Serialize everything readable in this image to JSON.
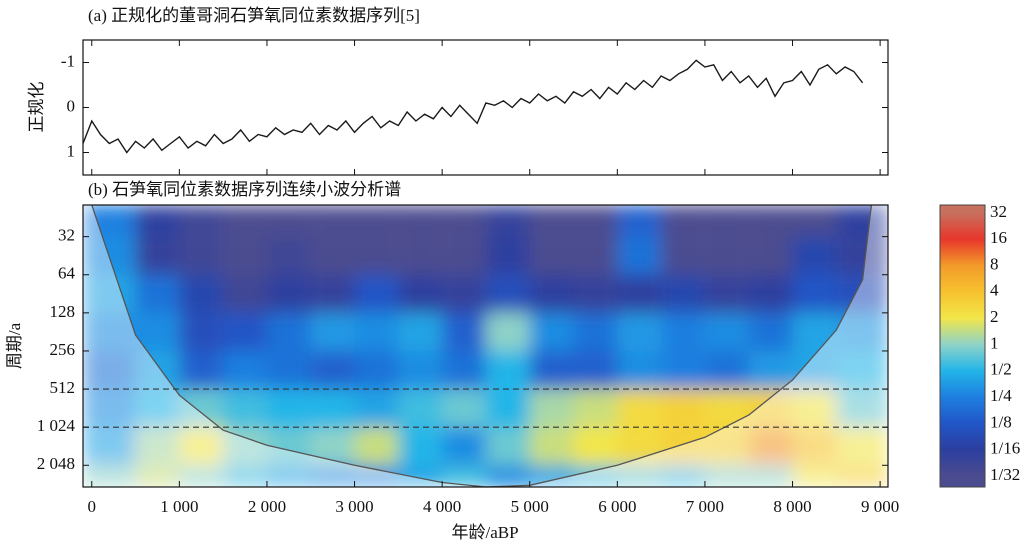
{
  "chart_data": [
    {
      "type": "line",
      "title": "(a) 正规化的董哥洞石笋氧同位素数据序列[5]",
      "y_label": "正规化",
      "xlim": [
        -100,
        9090
      ],
      "xticks": [
        0,
        1000,
        2000,
        3000,
        4000,
        5000,
        6000,
        7000,
        8000,
        9000
      ],
      "ylim": [
        -1.5,
        1.5
      ],
      "y_inverted": true,
      "yticks": [
        -1,
        0,
        1
      ],
      "series": [
        {
          "color": "#1a1a1a",
          "x": [
            -100,
            0,
            100,
            200,
            300,
            400,
            500,
            600,
            700,
            800,
            900,
            1000,
            1100,
            1200,
            1300,
            1400,
            1500,
            1600,
            1700,
            1800,
            1900,
            2000,
            2100,
            2200,
            2300,
            2400,
            2500,
            2600,
            2700,
            2800,
            2900,
            3000,
            3100,
            3200,
            3300,
            3400,
            3500,
            3600,
            3700,
            3800,
            3900,
            4000,
            4100,
            4200,
            4300,
            4400,
            4500,
            4600,
            4700,
            4800,
            4900,
            5000,
            5100,
            5200,
            5300,
            5400,
            5500,
            5600,
            5700,
            5800,
            5900,
            6000,
            6100,
            6200,
            6300,
            6400,
            6500,
            6600,
            6700,
            6800,
            6900,
            7000,
            7100,
            7200,
            7300,
            7400,
            7500,
            7600,
            7700,
            7800,
            7900,
            8000,
            8100,
            8200,
            8300,
            8400,
            8500,
            8600,
            8700,
            8800
          ],
          "values": [
            0.8,
            0.3,
            0.6,
            0.8,
            0.7,
            1.0,
            0.75,
            0.9,
            0.7,
            0.95,
            0.8,
            0.65,
            0.9,
            0.75,
            0.85,
            0.6,
            0.8,
            0.7,
            0.5,
            0.75,
            0.6,
            0.65,
            0.45,
            0.6,
            0.5,
            0.55,
            0.35,
            0.6,
            0.4,
            0.5,
            0.3,
            0.55,
            0.35,
            0.2,
            0.45,
            0.3,
            0.4,
            0.1,
            0.3,
            0.15,
            0.25,
            0.0,
            0.2,
            -0.05,
            0.15,
            0.35,
            -0.1,
            -0.05,
            -0.15,
            0.0,
            -0.2,
            -0.1,
            -0.3,
            -0.15,
            -0.25,
            -0.1,
            -0.35,
            -0.25,
            -0.4,
            -0.2,
            -0.45,
            -0.3,
            -0.55,
            -0.4,
            -0.6,
            -0.45,
            -0.7,
            -0.6,
            -0.75,
            -0.85,
            -1.05,
            -0.9,
            -0.95,
            -0.6,
            -0.8,
            -0.55,
            -0.7,
            -0.45,
            -0.65,
            -0.25,
            -0.55,
            -0.6,
            -0.8,
            -0.5,
            -0.85,
            -0.95,
            -0.75,
            -0.9,
            -0.8,
            -0.55
          ]
        }
      ]
    },
    {
      "type": "heatmap",
      "title": "(b) 石笋氧同位素数据序列连续小波分析谱",
      "x_label": "年龄/aBP",
      "y_label": "周期/a",
      "xlim": [
        -100,
        9090
      ],
      "xticks": [
        0,
        {
          "value": 1000,
          "label": "1 000"
        },
        {
          "value": 2000,
          "label": "2 000"
        },
        {
          "value": 3000,
          "label": "3 000"
        },
        {
          "value": 4000,
          "label": "4 000"
        },
        {
          "value": 5000,
          "label": "5 000"
        },
        {
          "value": 6000,
          "label": "6 000"
        },
        {
          "value": 7000,
          "label": "7 000"
        },
        {
          "value": 8000,
          "label": "8 000"
        },
        {
          "value": 9000,
          "label": "9 000"
        }
      ],
      "ylim": [
        18,
        3040
      ],
      "log_y": true,
      "y_inverted": true,
      "yticks": [
        32,
        64,
        128,
        256,
        512,
        {
          "value": 1024,
          "label": "1 024"
        },
        {
          "value": 2048,
          "label": "2 048"
        }
      ],
      "x_bins": [
        -100,
        500,
        1000,
        1500,
        2000,
        2500,
        3000,
        3500,
        4000,
        4500,
        5000,
        5500,
        6000,
        6500,
        7000,
        7500,
        8000,
        8500,
        9090
      ],
      "period_bins": [
        18,
        32,
        64,
        128,
        256,
        512,
        1024,
        2048,
        3040
      ],
      "values": [
        [
          0.25,
          0.06,
          0.04,
          0.03,
          0.03,
          0.03,
          0.03,
          0.03,
          0.03,
          0.05,
          0.03,
          0.03,
          0.15,
          0.03,
          0.03,
          0.03,
          0.03,
          0.06
        ],
        [
          0.3,
          0.05,
          0.04,
          0.03,
          0.04,
          0.03,
          0.03,
          0.03,
          0.03,
          0.06,
          0.03,
          0.03,
          0.2,
          0.03,
          0.03,
          0.03,
          0.08,
          0.05
        ],
        [
          0.4,
          0.2,
          0.08,
          0.04,
          0.06,
          0.05,
          0.12,
          0.06,
          0.05,
          0.1,
          0.06,
          0.05,
          0.06,
          0.08,
          0.05,
          0.06,
          0.12,
          0.1
        ],
        [
          0.3,
          0.3,
          0.1,
          0.12,
          0.2,
          0.35,
          0.3,
          0.4,
          0.15,
          1.0,
          0.3,
          0.2,
          0.35,
          0.25,
          0.3,
          0.2,
          0.4,
          0.35
        ],
        [
          0.2,
          0.4,
          0.15,
          0.25,
          0.2,
          0.15,
          0.2,
          0.3,
          0.2,
          0.5,
          0.15,
          0.15,
          0.3,
          0.25,
          0.2,
          0.35,
          0.4,
          0.5
        ],
        [
          0.3,
          0.5,
          0.8,
          0.6,
          0.5,
          0.5,
          0.4,
          0.6,
          0.8,
          0.5,
          1.2,
          1.5,
          2.5,
          3,
          2.5,
          3,
          2,
          0.8
        ],
        [
          0.4,
          1.2,
          2,
          1,
          0.8,
          1,
          1.5,
          0.5,
          0.3,
          0.8,
          1.5,
          2,
          2.5,
          3,
          3,
          8,
          4,
          2
        ],
        [
          1,
          1.5,
          1,
          0.6,
          0.4,
          0.3,
          0.3,
          0.4,
          0.6,
          0.3,
          0.4,
          0.6,
          0.8,
          0.6,
          1,
          1,
          2,
          3
        ]
      ],
      "hlines": [
        512,
        1024
      ],
      "coi": {
        "x": [
          0,
          500,
          1000,
          1500,
          2000,
          3000,
          4000,
          4500,
          5000,
          6000,
          7000,
          7500,
          8000,
          8500,
          8800,
          8900
        ],
        "period": [
          18,
          192,
          573,
          1082,
          1421,
          2048,
          2800,
          3040,
          2950,
          2048,
          1230,
          822,
          434,
          175,
          70,
          18
        ]
      },
      "colorbar": {
        "lim": [
          0.0234,
          39.4
        ],
        "log": true,
        "ticks": [
          32,
          16,
          8,
          4,
          2,
          1,
          {
            "value": 0.5,
            "label": "1/2"
          },
          {
            "value": 0.25,
            "label": "1/4"
          },
          {
            "value": 0.125,
            "label": "1/8"
          },
          {
            "value": 0.0625,
            "label": "1/16"
          },
          {
            "value": 0.03125,
            "label": "1/32"
          }
        ],
        "colors": [
          "#c8705e",
          "#e8362b",
          "#f39a2a",
          "#f6c22e",
          "#f2e64a",
          "#8fd3c8",
          "#22b5e8",
          "#1e7fe0",
          "#2156c8",
          "#2c3fa0",
          "#4b4b8f"
        ]
      }
    }
  ]
}
